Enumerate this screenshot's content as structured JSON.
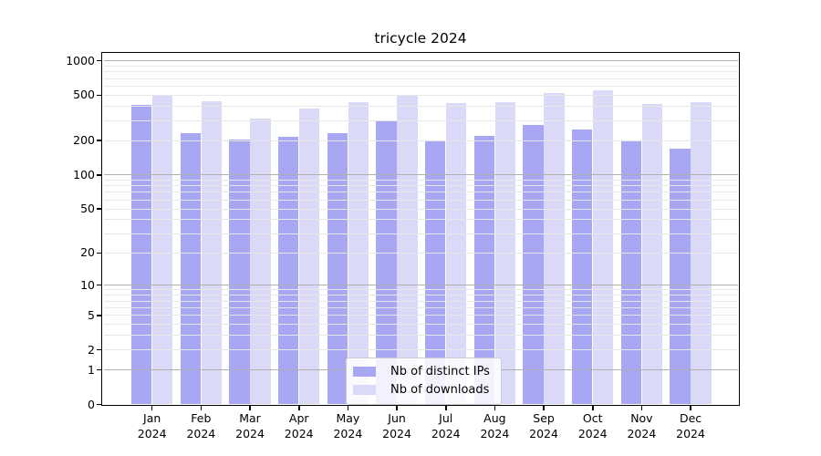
{
  "title": "tricycle 2024",
  "chart_data": {
    "type": "bar",
    "title": "tricycle 2024",
    "categories": [
      "Jan 2024",
      "Feb 2024",
      "Mar 2024",
      "Apr 2024",
      "May 2024",
      "Jun 2024",
      "Jul 2024",
      "Aug 2024",
      "Sep 2024",
      "Oct 2024",
      "Nov 2024",
      "Dec 2024"
    ],
    "series": [
      {
        "name": "Nb of distinct IPs",
        "color": "#a7a7f4",
        "values": [
          410,
          232,
          204,
          216,
          233,
          302,
          201,
          222,
          277,
          251,
          198,
          169
        ]
      },
      {
        "name": "Nb of downloads",
        "color": "#dadaf8",
        "values": [
          505,
          445,
          313,
          381,
          437,
          498,
          425,
          432,
          519,
          554,
          416,
          437
        ]
      }
    ],
    "xlabel": "",
    "ylabel": "",
    "yscale": "log1p",
    "ylim": [
      0,
      1150
    ],
    "yticks": [
      1000,
      500,
      200,
      100,
      50,
      20,
      10,
      5,
      2,
      1,
      0
    ],
    "grid": {
      "horizontal": true,
      "vertical": false,
      "major_values": [
        1,
        10,
        100,
        1000
      ],
      "minor_values": [
        2,
        3,
        4,
        5,
        6,
        7,
        8,
        9,
        20,
        30,
        40,
        50,
        60,
        70,
        80,
        90,
        200,
        300,
        400,
        500,
        600,
        700,
        800,
        900
      ],
      "drawn_over_bars": true
    },
    "legend": {
      "position": "lower-center-inside",
      "entries": [
        "Nb of distinct IPs",
        "Nb of downloads"
      ]
    }
  },
  "colors": {
    "background": "#ffffff",
    "spine": "#000000",
    "major_grid": "#b0b0b0",
    "minor_grid": "#e7e7e7",
    "bar_distinct_ips": "#a7a7f4",
    "bar_downloads": "#dadaf8",
    "text": "#000000"
  }
}
